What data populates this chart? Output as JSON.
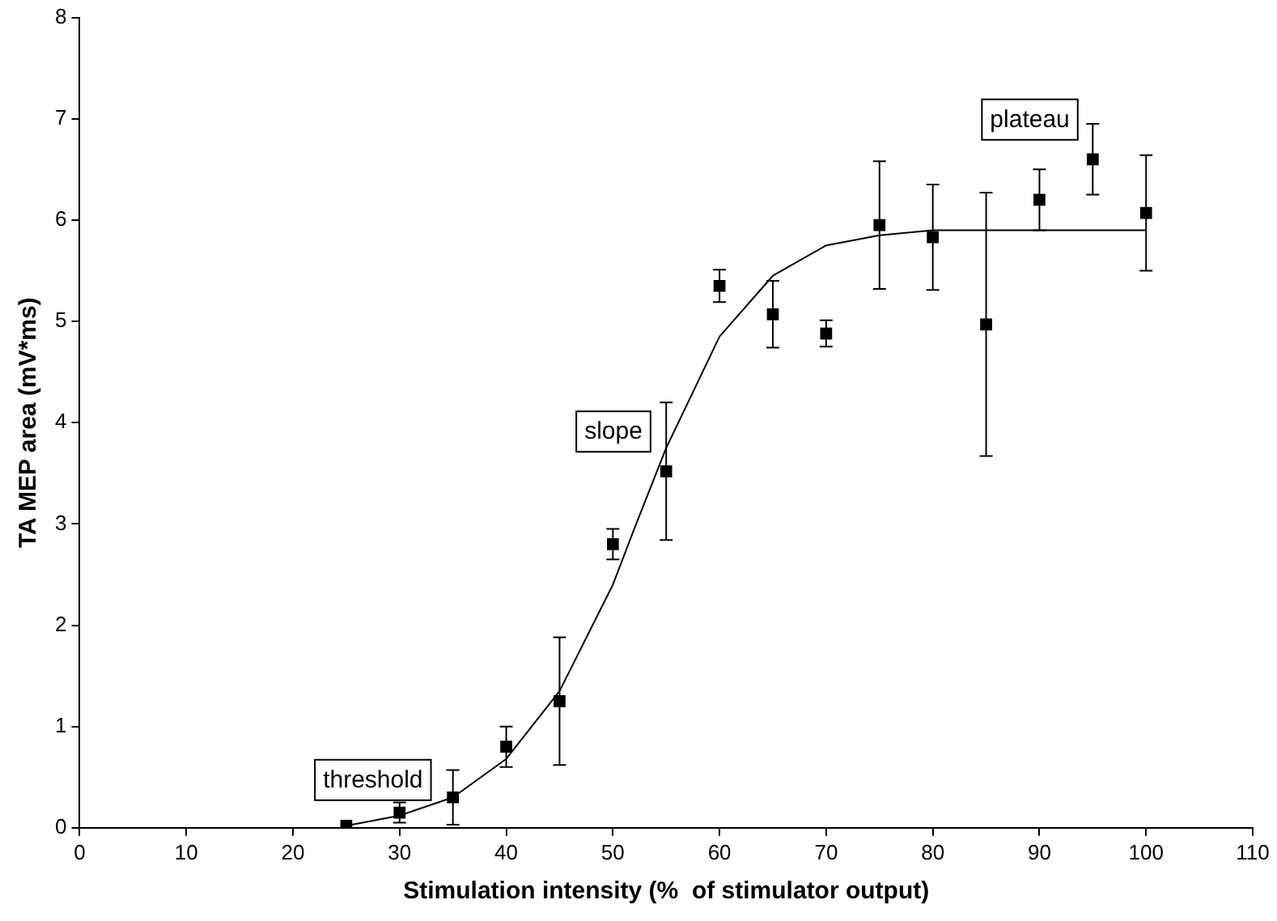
{
  "chart_data": {
    "type": "scatter",
    "xlabel": "Stimulation intensity (%  of stimulator output)",
    "ylabel": "TA MEP area (mV*ms)",
    "x": [
      25,
      30,
      35,
      40,
      45,
      50,
      55,
      60,
      65,
      70,
      75,
      80,
      85,
      90,
      95,
      100
    ],
    "xlim": [
      0,
      110
    ],
    "xticks": [
      0,
      10,
      20,
      30,
      40,
      50,
      60,
      70,
      80,
      90,
      100,
      110
    ],
    "ylim": [
      0,
      8
    ],
    "yticks": [
      0,
      1,
      2,
      3,
      4,
      5,
      6,
      7,
      8
    ],
    "grid": false,
    "legend": false,
    "series": [
      {
        "type": "scatter",
        "color": "#000000",
        "marker": "square",
        "values": [
          0.02,
          0.15,
          0.3,
          0.8,
          1.25,
          2.8,
          3.52,
          5.35,
          5.07,
          4.88,
          5.95,
          5.83,
          4.97,
          6.2,
          6.6,
          6.07
        ],
        "errors": [
          null,
          0.1,
          0.27,
          0.2,
          0.63,
          0.15,
          0.68,
          0.16,
          0.33,
          0.13,
          0.63,
          0.52,
          1.3,
          0.3,
          0.35,
          0.57
        ]
      },
      {
        "type": "line",
        "color": "#000000",
        "marker": "none",
        "line_style": "solid",
        "x": [
          25,
          30,
          35,
          40,
          45,
          50,
          52,
          55,
          60,
          65,
          70,
          75,
          80,
          90,
          100
        ],
        "values": [
          0.02,
          0.12,
          0.3,
          0.68,
          1.35,
          2.4,
          2.95,
          3.75,
          4.85,
          5.45,
          5.75,
          5.85,
          5.9,
          5.9,
          5.9
        ]
      }
    ],
    "annotations": [
      "threshold",
      "slope",
      "plateau"
    ]
  }
}
